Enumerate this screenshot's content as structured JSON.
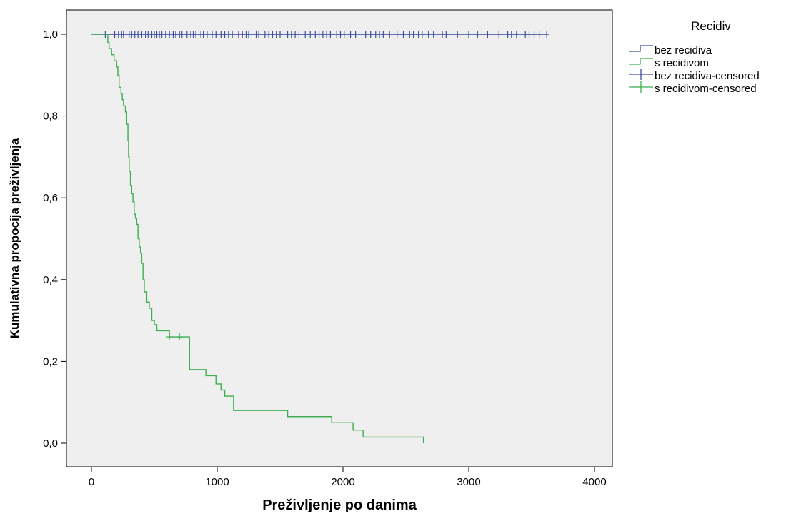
{
  "chart_data": {
    "type": "line",
    "subtype": "kaplan-meier step",
    "xlabel": "Preživljenje po danima",
    "ylabel": "Kumulativna propocija preživljenja",
    "xlim": [
      0,
      4000
    ],
    "ylim": [
      0,
      1.0
    ],
    "xticks": [
      "0",
      "1000",
      "2000",
      "3000",
      "4000"
    ],
    "yticks": [
      "0,0",
      "0,2",
      "0,4",
      "0,6",
      "0,8",
      "1,0"
    ],
    "ytick_values": [
      0,
      0.2,
      0.4,
      0.6,
      0.8,
      1.0
    ],
    "xtick_values": [
      0,
      1000,
      2000,
      3000,
      4000
    ],
    "grid": false,
    "plot_background": "#efefef",
    "legend_title": "Recidiv",
    "legend_position": "right",
    "legend": [
      {
        "label": "bez recidiva",
        "kind": "line",
        "color": "#3c4fa0"
      },
      {
        "label": "s recidivom",
        "kind": "line",
        "color": "#3dae50"
      },
      {
        "label": "bez recidiva-censored",
        "kind": "cross",
        "color": "#3c4fa0"
      },
      {
        "label": "s recidivom-censored",
        "kind": "cross",
        "color": "#3dae50"
      }
    ],
    "series": [
      {
        "name": "bez recidiva",
        "color": "#3c4fa0",
        "steps": [
          [
            0,
            1.0
          ],
          [
            3630,
            1.0
          ]
        ],
        "censored_x": [
          110,
          185,
          215,
          240,
          255,
          300,
          320,
          345,
          370,
          400,
          430,
          450,
          480,
          500,
          520,
          540,
          560,
          590,
          620,
          650,
          670,
          700,
          720,
          760,
          790,
          810,
          830,
          870,
          890,
          920,
          960,
          990,
          1030,
          1060,
          1090,
          1120,
          1170,
          1200,
          1230,
          1250,
          1310,
          1330,
          1380,
          1410,
          1440,
          1470,
          1500,
          1560,
          1590,
          1620,
          1650,
          1700,
          1740,
          1780,
          1810,
          1840,
          1870,
          1900,
          1950,
          1980,
          2010,
          2060,
          2100,
          2180,
          2220,
          2260,
          2290,
          2320,
          2370,
          2430,
          2480,
          2530,
          2560,
          2600,
          2630,
          2680,
          2720,
          2790,
          2820,
          2910,
          3000,
          3070,
          3150,
          3240,
          3310,
          3340,
          3380,
          3450,
          3480,
          3520,
          3560,
          3620
        ]
      },
      {
        "name": "s recidivom",
        "color": "#3dae50",
        "steps": [
          [
            0,
            1.0
          ],
          [
            110,
            1.0
          ],
          [
            130,
            0.98
          ],
          [
            140,
            0.965
          ],
          [
            160,
            0.95
          ],
          [
            180,
            0.935
          ],
          [
            200,
            0.92
          ],
          [
            210,
            0.9
          ],
          [
            220,
            0.87
          ],
          [
            235,
            0.855
          ],
          [
            245,
            0.84
          ],
          [
            255,
            0.825
          ],
          [
            270,
            0.81
          ],
          [
            280,
            0.78
          ],
          [
            290,
            0.74
          ],
          [
            295,
            0.7
          ],
          [
            300,
            0.665
          ],
          [
            310,
            0.63
          ],
          [
            320,
            0.61
          ],
          [
            330,
            0.59
          ],
          [
            340,
            0.56
          ],
          [
            350,
            0.55
          ],
          [
            360,
            0.535
          ],
          [
            370,
            0.5
          ],
          [
            380,
            0.48
          ],
          [
            390,
            0.465
          ],
          [
            400,
            0.44
          ],
          [
            410,
            0.4
          ],
          [
            420,
            0.37
          ],
          [
            440,
            0.345
          ],
          [
            460,
            0.33
          ],
          [
            480,
            0.3
          ],
          [
            500,
            0.29
          ],
          [
            520,
            0.275
          ],
          [
            620,
            0.26
          ],
          [
            780,
            0.18
          ],
          [
            910,
            0.165
          ],
          [
            990,
            0.145
          ],
          [
            1030,
            0.13
          ],
          [
            1060,
            0.115
          ],
          [
            1130,
            0.08
          ],
          [
            1560,
            0.065
          ],
          [
            1910,
            0.05
          ],
          [
            2080,
            0.032
          ],
          [
            2160,
            0.015
          ],
          [
            2640,
            0.015
          ],
          [
            2640,
            0.0
          ]
        ],
        "censored_x": [
          620,
          700
        ]
      }
    ]
  }
}
